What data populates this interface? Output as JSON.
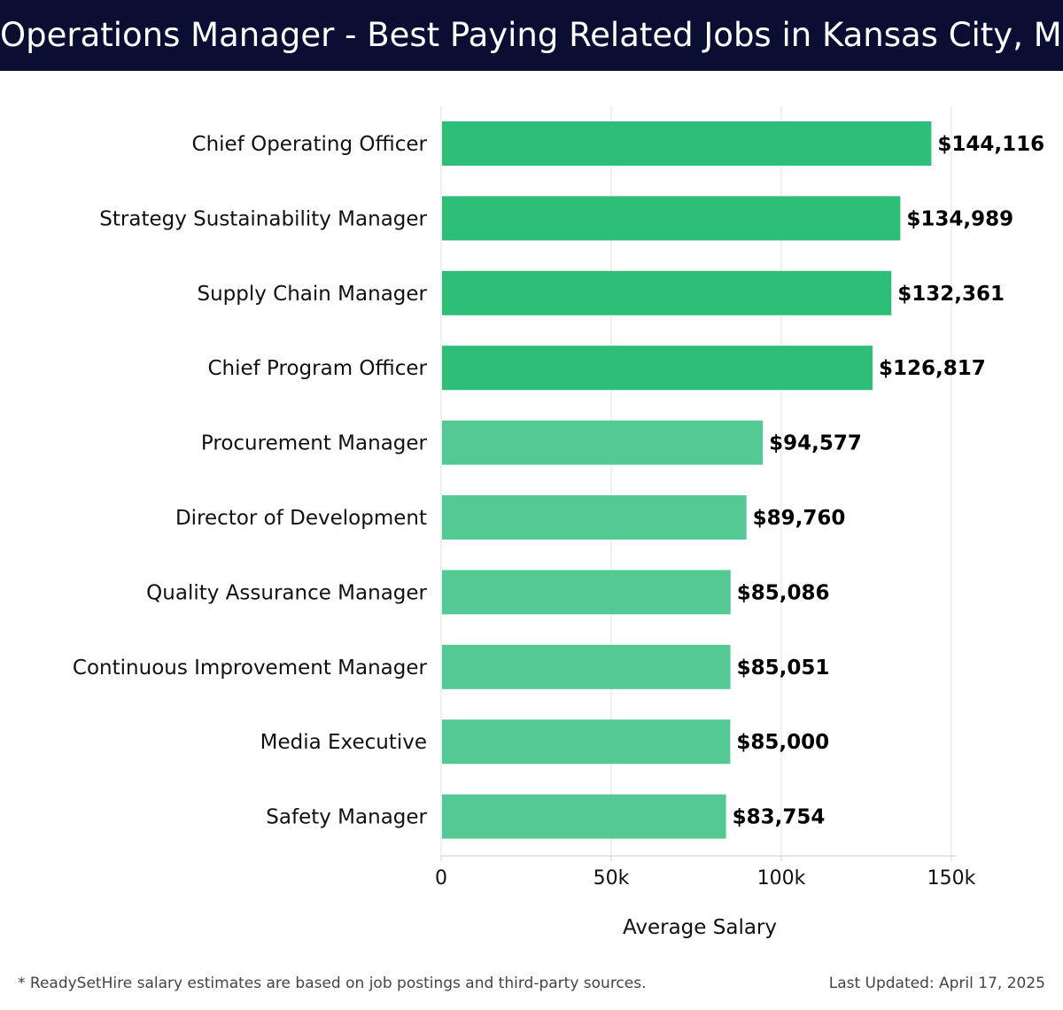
{
  "header": {
    "title": "Operations Manager - Best Paying Related Jobs in Kansas City, MO"
  },
  "chart_data": {
    "type": "bar",
    "orientation": "horizontal",
    "categories": [
      "Chief Operating Officer",
      "Strategy Sustainability Manager",
      "Supply Chain Manager",
      "Chief Program Officer",
      "Procurement Manager",
      "Director of Development",
      "Quality Assurance Manager",
      "Continuous Improvement Manager",
      "Media Executive",
      "Safety Manager"
    ],
    "values": [
      144116,
      134989,
      132361,
      126817,
      94577,
      89760,
      85086,
      85051,
      85000,
      83754
    ],
    "value_labels": [
      "$144,116",
      "$134,989",
      "$132,361",
      "$126,817",
      "$94,577",
      "$89,760",
      "$85,086",
      "$85,051",
      "$85,000",
      "$83,754"
    ],
    "xlabel": "Average Salary",
    "xlim": [
      0,
      150000
    ],
    "xticks": [
      0,
      50000,
      100000,
      150000
    ],
    "xtick_labels": [
      "0",
      "50k",
      "100k",
      "150k"
    ],
    "grid": "vertical",
    "colors": {
      "top4": "#2dbe78",
      "rest": "#55c994",
      "grid": "#e3e3e3",
      "axis": "#cccccc"
    }
  },
  "footer": {
    "note": "* ReadySetHire salary estimates are based on job postings and third-party sources.",
    "updated": "Last Updated: April 17, 2025"
  }
}
